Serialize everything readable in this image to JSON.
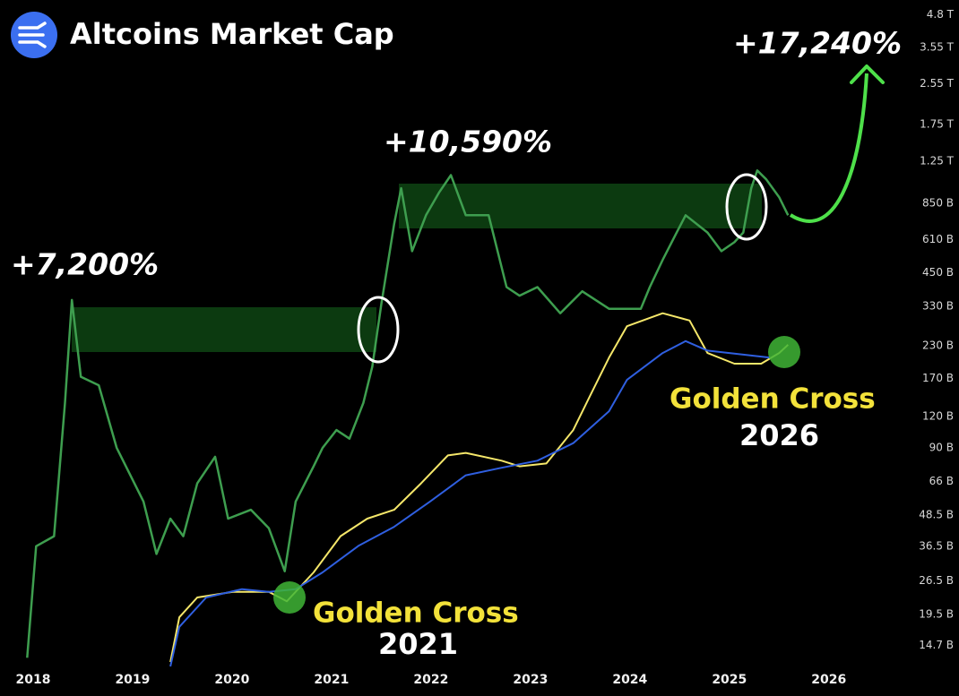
{
  "chart_data": {
    "type": "line",
    "title": "Altcoins Market Cap",
    "log_scale": true,
    "grid": false,
    "xlim": [
      2017.667,
      2026.867
    ],
    "xticks": [
      2018,
      2019,
      2020,
      2021,
      2022,
      2023,
      2024,
      2025,
      2026
    ],
    "ylim": [
      12,
      5500
    ],
    "yticks": [
      {
        "value": 4800,
        "label": "4.8 T"
      },
      {
        "value": 3550,
        "label": "3.55 T"
      },
      {
        "value": 2550,
        "label": "2.55 T"
      },
      {
        "value": 1750,
        "label": "1.75 T"
      },
      {
        "value": 1250,
        "label": "1.25 T"
      },
      {
        "value": 850,
        "label": "850 B"
      },
      {
        "value": 610,
        "label": "610 B"
      },
      {
        "value": 450,
        "label": "450 B"
      },
      {
        "value": 330,
        "label": "330 B"
      },
      {
        "value": 230,
        "label": "230 B"
      },
      {
        "value": 170,
        "label": "170 B"
      },
      {
        "value": 120,
        "label": "120 B"
      },
      {
        "value": 90,
        "label": "90 B"
      },
      {
        "value": 66,
        "label": "66 B"
      },
      {
        "value": 48.5,
        "label": "48.5 B"
      },
      {
        "value": 36.5,
        "label": "36.5 B"
      },
      {
        "value": 26.5,
        "label": "26.5 B"
      },
      {
        "value": 19.5,
        "label": "19.5 B"
      },
      {
        "value": 14.7,
        "label": "14.7 B"
      }
    ],
    "series": [
      {
        "color": "#3e9e4f",
        "x": [
          2017.94,
          2018.03,
          2018.21,
          2018.32,
          2018.39,
          2018.48,
          2018.66,
          2018.84,
          2019.11,
          2019.24,
          2019.38,
          2019.51,
          2019.65,
          2019.83,
          2019.96,
          2020.19,
          2020.37,
          2020.53,
          2020.64,
          2020.82,
          2020.91,
          2021.05,
          2021.18,
          2021.32,
          2021.41,
          2021.5,
          2021.63,
          2021.7,
          2021.81,
          2021.95,
          2022.08,
          2022.2,
          2022.35,
          2022.58,
          2022.67,
          2022.76,
          2022.89,
          2023.07,
          2023.3,
          2023.52,
          2023.79,
          2023.97,
          2024.11,
          2024.2,
          2024.33,
          2024.47,
          2024.56,
          2024.78,
          2024.92,
          2025.05,
          2025.14,
          2025.22,
          2025.28,
          2025.37,
          2025.5,
          2025.59
        ],
        "values": [
          13.1,
          36.5,
          40,
          136,
          350,
          173,
          160,
          90,
          55,
          34,
          47,
          40,
          65,
          83,
          47,
          51,
          43,
          29,
          55,
          76,
          90,
          106,
          98,
          136,
          190,
          336,
          704,
          977,
          548,
          762,
          937,
          1102,
          762,
          762,
          548,
          394,
          364,
          394,
          310,
          379,
          323,
          323,
          323,
          394,
          506,
          650,
          762,
          650,
          548,
          595,
          650,
          977,
          1150,
          1060,
          900,
          762
        ]
      },
      {
        "color": "#f5e76a",
        "x": [
          2019.38,
          2019.47,
          2019.65,
          2020.01,
          2020.37,
          2020.55,
          2020.82,
          2021.09,
          2021.36,
          2021.63,
          2021.9,
          2022.17,
          2022.35,
          2022.71,
          2022.89,
          2023.16,
          2023.43,
          2023.61,
          2023.79,
          2023.97,
          2024.33,
          2024.6,
          2024.78,
          2025.05,
          2025.32,
          2025.5,
          2025.59
        ],
        "values": [
          12.6,
          19,
          22.8,
          24,
          24,
          22,
          28.7,
          40,
          47,
          51,
          65,
          84,
          86,
          80,
          76,
          78,
          106,
          148,
          206,
          275,
          310,
          290,
          215,
          195,
          195,
          215,
          232
        ]
      },
      {
        "color": "#2f5fe0",
        "x": [
          2019.38,
          2019.47,
          2019.74,
          2020.1,
          2020.37,
          2020.64,
          2020.91,
          2021.27,
          2021.63,
          2021.99,
          2022.35,
          2022.71,
          2023.07,
          2023.43,
          2023.79,
          2023.97,
          2024.33,
          2024.56,
          2024.78,
          2025.14,
          2025.41
        ],
        "values": [
          12.1,
          17.4,
          22.8,
          24.6,
          24,
          24.6,
          28.7,
          36.6,
          43.6,
          55,
          70,
          75,
          80,
          94,
          126,
          168,
          215,
          240,
          220,
          212,
          206
        ]
      }
    ],
    "annotations": [
      "+7,200%",
      "+10,590%",
      "+17,240%",
      "Golden Cross",
      "2021",
      "Golden Cross",
      "2026"
    ]
  }
}
